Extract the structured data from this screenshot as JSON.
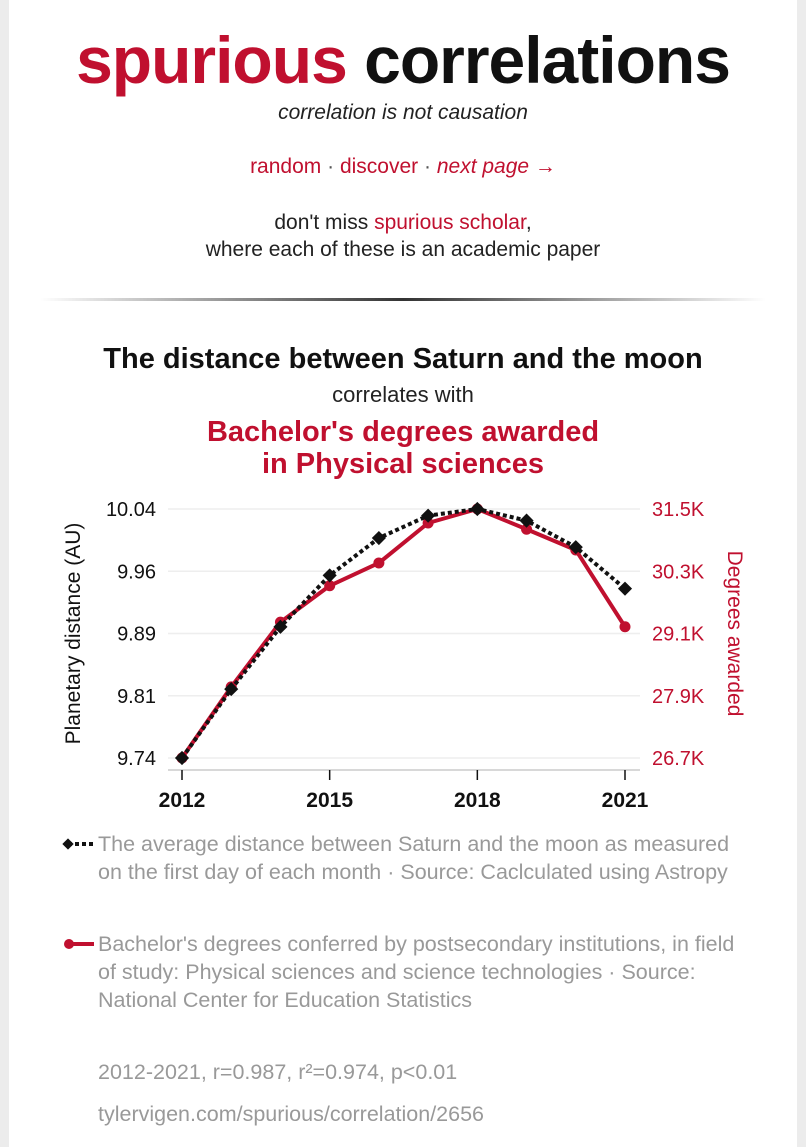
{
  "header": {
    "title_red": "spurious",
    "title_black": "correlations",
    "tagline": "correlation is not causation",
    "nav": {
      "random": "random",
      "sep": "·",
      "discover": "discover",
      "next": "next page →"
    },
    "promo_prefix": "don't miss",
    "promo_link": "spurious scholar",
    "promo_comma": ",",
    "promo_line2": "where each of these is an academic paper"
  },
  "chart_header": {
    "title": "The distance between Saturn and the moon",
    "connector": "correlates with",
    "title2_line1": "Bachelor's degrees awarded",
    "title2_line2": "in Physical sciences"
  },
  "colors": {
    "red": "#c0102f",
    "black": "#111111",
    "gray": "#999999"
  },
  "chart_data": {
    "type": "line",
    "x": [
      2012,
      2013,
      2014,
      2015,
      2016,
      2017,
      2018,
      2019,
      2020,
      2021
    ],
    "xticks": [
      "2012",
      "2015",
      "2018",
      "2021"
    ],
    "xtick_values": [
      2012,
      2015,
      2018,
      2021
    ],
    "ylabel_left": "Planetary distance (AU)",
    "ylabel_right": "Degrees awarded",
    "ylim_left": [
      9.74,
      10.04
    ],
    "ylim_right": [
      26700,
      31500
    ],
    "yticks_left": [
      "10.04",
      "9.96",
      "9.89",
      "9.81",
      "9.74"
    ],
    "yticks_right": [
      "31.5K",
      "30.3K",
      "29.1K",
      "27.9K",
      "26.7K"
    ],
    "grid": true,
    "series": [
      {
        "name": "The distance between Saturn and the moon",
        "axis": "left",
        "style": "dotted-diamond",
        "values": [
          9.74,
          9.823,
          9.898,
          9.96,
          10.005,
          10.032,
          10.04,
          10.026,
          9.994,
          9.944
        ]
      },
      {
        "name": "Bachelor's degrees awarded in Physical sciences",
        "axis": "right",
        "style": "solid-circle",
        "values": [
          26700,
          28070,
          29320,
          30020,
          30460,
          31230,
          31500,
          31110,
          30710,
          29230
        ]
      }
    ]
  },
  "legend": {
    "series1": "The average distance between Saturn and the moon as measured on the first day of each month · Source: Caclculated using Astropy",
    "series2": "Bachelor's degrees conferred by postsecondary institutions, in field of study: Physical sciences and science technologies · Source: National Center for Education Statistics"
  },
  "stats": "2012-2021, r=0.987, r²=0.974, p<0.01",
  "url": "tylervigen.com/spurious/correlation/2656"
}
